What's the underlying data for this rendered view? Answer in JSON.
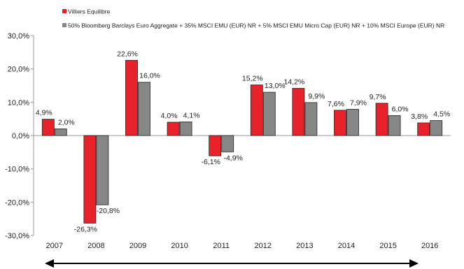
{
  "chart_data": {
    "type": "bar",
    "categories": [
      "2007",
      "2008",
      "2009",
      "2010",
      "2011",
      "2012",
      "2013",
      "2014",
      "2015",
      "2016"
    ],
    "series": [
      {
        "name": "Villiers Equilibre",
        "color": "#e8222a",
        "values": [
          4.9,
          -26.3,
          22.6,
          4.0,
          -6.1,
          15.2,
          14.2,
          7.6,
          9.7,
          3.8
        ],
        "labels": [
          "4,9%",
          "-26,3%",
          "22,6%",
          "4,0%",
          "-6,1%",
          "15,2%",
          "14,2%",
          "7,6%",
          "9,7%",
          "3,8%"
        ]
      },
      {
        "name": "50% Bloomberg Barclays Euro Aggregate + 35% MSCI EMU (EUR) NR + 5% MSCI EMU Micro Cap (EUR) NR + 10% MSCI Europe (EUR) NR",
        "color": "#878787",
        "values": [
          2.0,
          -20.8,
          16.0,
          4.1,
          -4.9,
          13.0,
          9.9,
          7.9,
          6.0,
          4.5
        ],
        "labels": [
          "2,0%",
          "-20,8%",
          "16,0%",
          "4,1%",
          "-4,9%",
          "13,0%",
          "9,9%",
          "7,9%",
          "6,0%",
          "4,5%"
        ]
      }
    ],
    "yticks": [
      30,
      20,
      10,
      0,
      -10,
      -20,
      -30
    ],
    "ytick_labels": [
      "30,0%",
      "20,0%",
      "10,0%",
      "0,0%",
      "-10,0%",
      "-20,0%",
      "-30,0%"
    ],
    "ylim": [
      -30,
      30
    ],
    "grid": false,
    "legend_position": "top-left",
    "annotation": "double-headed-arrow"
  }
}
